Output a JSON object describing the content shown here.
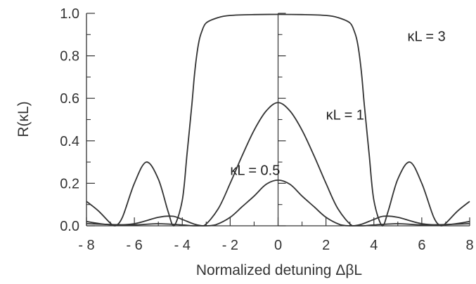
{
  "chart_data": {
    "type": "line",
    "xlabel": "Normalized detuning ΔβL",
    "ylabel": "R(κL)",
    "xlim": [
      -8,
      8
    ],
    "ylim": [
      0,
      1.0
    ],
    "xticks": [
      -8,
      -6,
      -4,
      -2,
      0,
      2,
      4,
      6,
      8
    ],
    "xtick_labels": [
      "- 8",
      "- 6",
      "- 4",
      "- 2",
      "0",
      "2",
      "4",
      "6",
      "8"
    ],
    "yticks": [
      0,
      0.2,
      0.4,
      0.6,
      0.8,
      1.0
    ],
    "ytick_labels": [
      "0.0",
      "0.2",
      "0.4",
      "0.6",
      "0.8",
      "1.0"
    ],
    "grid": false,
    "line_color": "#333333",
    "series": [
      {
        "name": "κL = 3",
        "x": [
          -8,
          -7.5,
          -7,
          -6.8,
          -6.5,
          -6,
          -5.5,
          -5,
          -4.6,
          -4.35,
          -4,
          -3.8,
          -3.6,
          -3.5,
          -3.4,
          -3.3,
          -3.2,
          -3,
          -2.5,
          -2,
          -1,
          0,
          1,
          2,
          2.5,
          3,
          3.2,
          3.3,
          3.4,
          3.5,
          3.6,
          3.8,
          4,
          4.35,
          4.6,
          5,
          5.5,
          6,
          6.5,
          6.8,
          7,
          7.5,
          8
        ],
        "y": [
          0.115,
          0.07,
          0.012,
          0.0,
          0.04,
          0.2,
          0.3,
          0.22,
          0.07,
          0.0,
          0.12,
          0.34,
          0.57,
          0.7,
          0.8,
          0.87,
          0.91,
          0.955,
          0.98,
          0.99,
          0.994,
          0.995,
          0.994,
          0.99,
          0.98,
          0.955,
          0.91,
          0.87,
          0.8,
          0.7,
          0.57,
          0.34,
          0.12,
          0.0,
          0.07,
          0.22,
          0.3,
          0.2,
          0.04,
          0.0,
          0.012,
          0.07,
          0.115
        ]
      },
      {
        "name": "κL = 1",
        "x": [
          -8,
          -7,
          -6,
          -5,
          -4.4,
          -4,
          -3.5,
          -3.1,
          -2.5,
          -2,
          -1.5,
          -1,
          -0.5,
          0,
          0.5,
          1,
          1.5,
          2,
          2.5,
          3.1,
          3.5,
          4,
          4.4,
          5,
          6,
          7,
          8
        ],
        "y": [
          0.02,
          0.005,
          0.01,
          0.04,
          0.045,
          0.03,
          0.008,
          0.0,
          0.08,
          0.2,
          0.33,
          0.45,
          0.54,
          0.58,
          0.54,
          0.45,
          0.33,
          0.2,
          0.08,
          0.0,
          0.008,
          0.03,
          0.045,
          0.04,
          0.01,
          0.005,
          0.02
        ]
      },
      {
        "name": "κL = 0.5",
        "x": [
          -8,
          -7,
          -6,
          -5,
          -4,
          -3.5,
          -3,
          -2.6,
          -2,
          -1.5,
          -1,
          -0.5,
          0,
          0.5,
          1,
          1.5,
          2,
          2.6,
          3,
          3.5,
          4,
          5,
          6,
          7,
          8
        ],
        "y": [
          0.01,
          0.006,
          0.004,
          0.01,
          0.004,
          0.0,
          0.0,
          0.005,
          0.04,
          0.09,
          0.14,
          0.195,
          0.215,
          0.195,
          0.14,
          0.09,
          0.04,
          0.005,
          0.0,
          0.0,
          0.004,
          0.01,
          0.004,
          0.006,
          0.01
        ]
      }
    ],
    "annotations": [
      {
        "text": "κL = 3",
        "x": 5.4,
        "y": 0.87
      },
      {
        "text": "κL = 1",
        "x": 2.0,
        "y": 0.5
      },
      {
        "text": "κL = 0.5",
        "x": -2.0,
        "y": 0.24
      }
    ]
  }
}
